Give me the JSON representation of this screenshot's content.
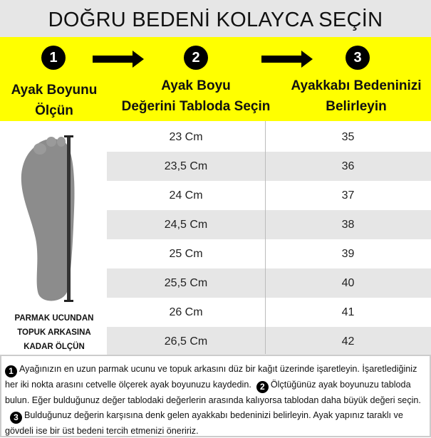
{
  "title": "DOĞRU BEDENİ KOLAYCA SEÇİN",
  "steps": [
    {
      "number": "1",
      "line1": "Ayak Boyunu",
      "line2": "Ölçün"
    },
    {
      "number": "2",
      "line1": "Ayak Boyu",
      "line2": "Değerini Tabloda Seçin"
    },
    {
      "number": "3",
      "line1": "Ayakkabı Bedeninizi",
      "line2": "Belirleyin"
    }
  ],
  "colors": {
    "banner": "#ffff00",
    "header": "#e6e6e6",
    "row_alt": "#e6e6e6"
  },
  "size_table": {
    "rows": [
      {
        "foot_length": "23 Cm",
        "size": "35"
      },
      {
        "foot_length": "23,5 Cm",
        "size": "36"
      },
      {
        "foot_length": "24 Cm",
        "size": "37"
      },
      {
        "foot_length": "24,5 Cm",
        "size": "38"
      },
      {
        "foot_length": "25 Cm",
        "size": "39"
      },
      {
        "foot_length": "25,5 Cm",
        "size": "40"
      },
      {
        "foot_length": "26 Cm",
        "size": "41"
      },
      {
        "foot_length": "26,5 Cm",
        "size": "42"
      }
    ]
  },
  "foot_caption": [
    "PARMAK UCUNDAN",
    "TOPUK ARKASINA",
    "KADAR ÖLÇÜN"
  ],
  "instructions": {
    "n1": "1",
    "t1": "Ayağınızın en uzun parmak ucunu ve topuk arkasını düz bir kağıt üzerinde işaretleyin. İşaretlediğiniz her iki nokta arasını cetvelle ölçerek ayak boyunuzu kaydedin.",
    "n2": "2",
    "t2": "Ölçtüğünüz ayak boyunuzu tabloda bulun. Eğer bulduğunuz değer tablodaki değerlerin arasında kalıyorsa tablodan daha büyük değeri seçin.",
    "n3": "3",
    "t3": "Bulduğunuz değerin karşısına denk gelen ayakkabı bedeninizi belirleyin. Ayak yapınız taraklı ve gövdeli ise bir üst bedeni tercih etmenizi öneririz."
  }
}
